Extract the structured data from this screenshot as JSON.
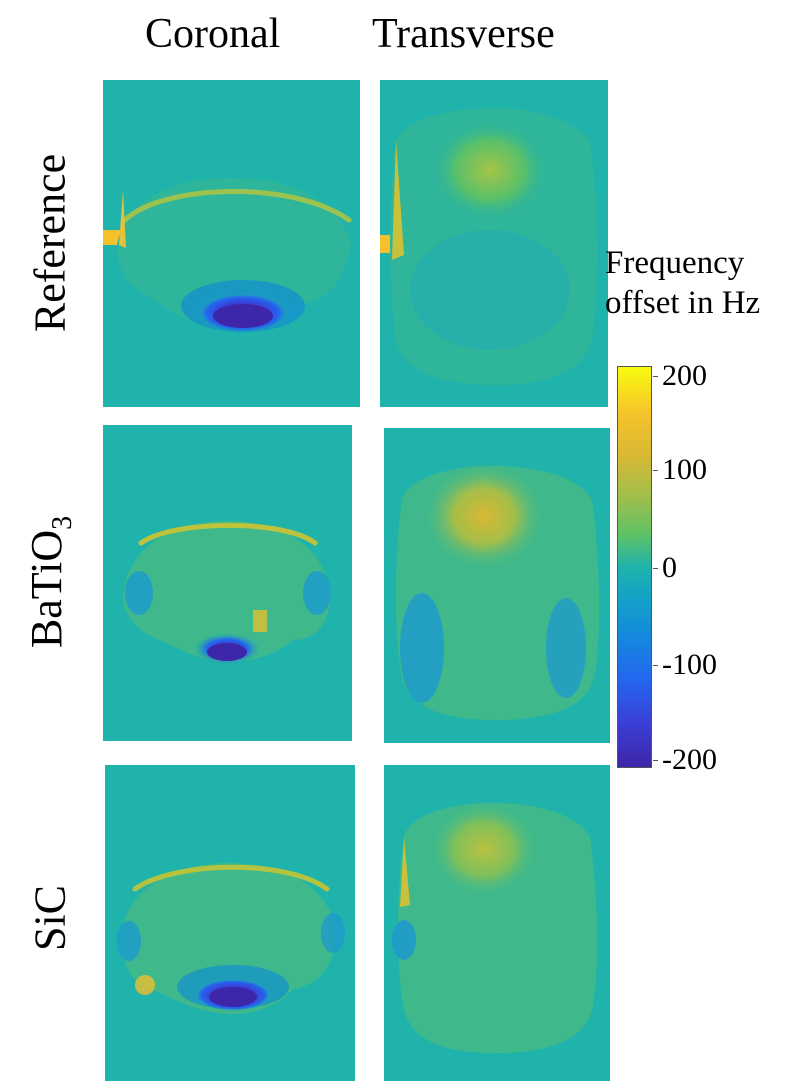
{
  "columns": [
    "Coronal",
    "Transverse"
  ],
  "rows": {
    "reference": "Reference",
    "batio3_base": "BaTiO",
    "batio3_sub": "3",
    "sic": "SiC"
  },
  "colorbar": {
    "title_line1": "Frequency",
    "title_line2": "offset in Hz",
    "ticks": [
      "200",
      "100",
      "0",
      "-100",
      "-200"
    ],
    "colors": {
      "max": "#f9fb0e",
      "mid_high": "#5ec266",
      "zero": "#1fb3ab",
      "mid_low": "#1587de",
      "min": "#3e26a8"
    }
  }
}
